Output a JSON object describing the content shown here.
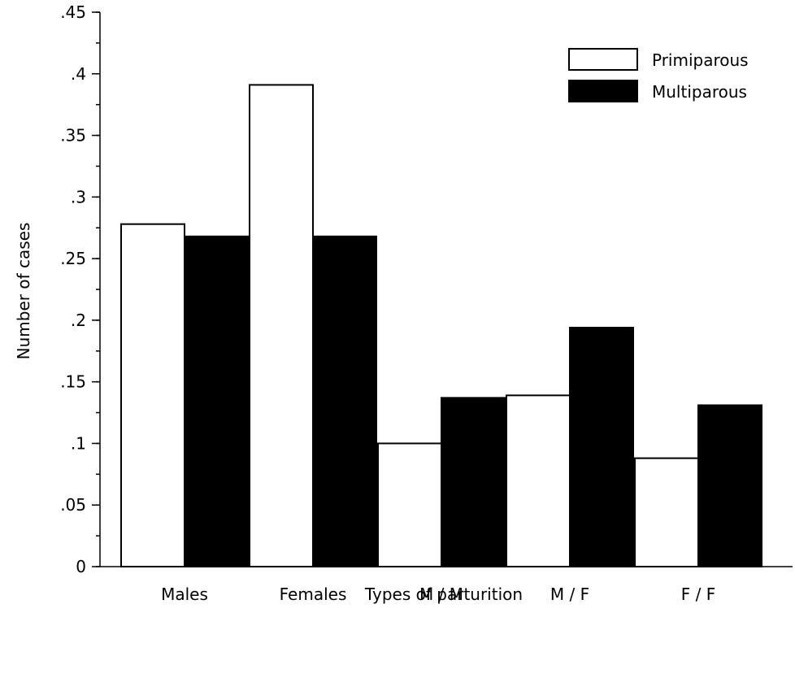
{
  "chart_data": {
    "type": "bar",
    "title": "",
    "xlabel": "Types of parturition",
    "ylabel": "Number of cases",
    "categories": [
      "Males",
      "Females",
      "M/M",
      "M/F",
      "F/F"
    ],
    "series": [
      {
        "name": "Primiparous",
        "color": "#ffffff",
        "values": [
          0.278,
          0.391,
          0.1,
          0.139,
          0.088
        ]
      },
      {
        "name": "Multiparous",
        "color": "#000000",
        "values": [
          0.268,
          0.268,
          0.137,
          0.194,
          0.131
        ]
      }
    ],
    "ylim": [
      0,
      0.45
    ],
    "yticks": [
      {
        "value": 0,
        "label": "0"
      },
      {
        "value": 0.05,
        "label": ".05"
      },
      {
        "value": 0.1,
        "label": ".1"
      },
      {
        "value": 0.15,
        "label": ".15"
      },
      {
        "value": 0.2,
        "label": ".2"
      },
      {
        "value": 0.25,
        "label": ".25"
      },
      {
        "value": 0.3,
        "label": ".3"
      },
      {
        "value": 0.35,
        "label": ".35"
      },
      {
        "value": 0.4,
        "label": ".4"
      },
      {
        "value": 0.45,
        "label": ".45"
      }
    ],
    "minor_tick_step": 0.025,
    "grid": false,
    "legend_position": "top-right"
  }
}
